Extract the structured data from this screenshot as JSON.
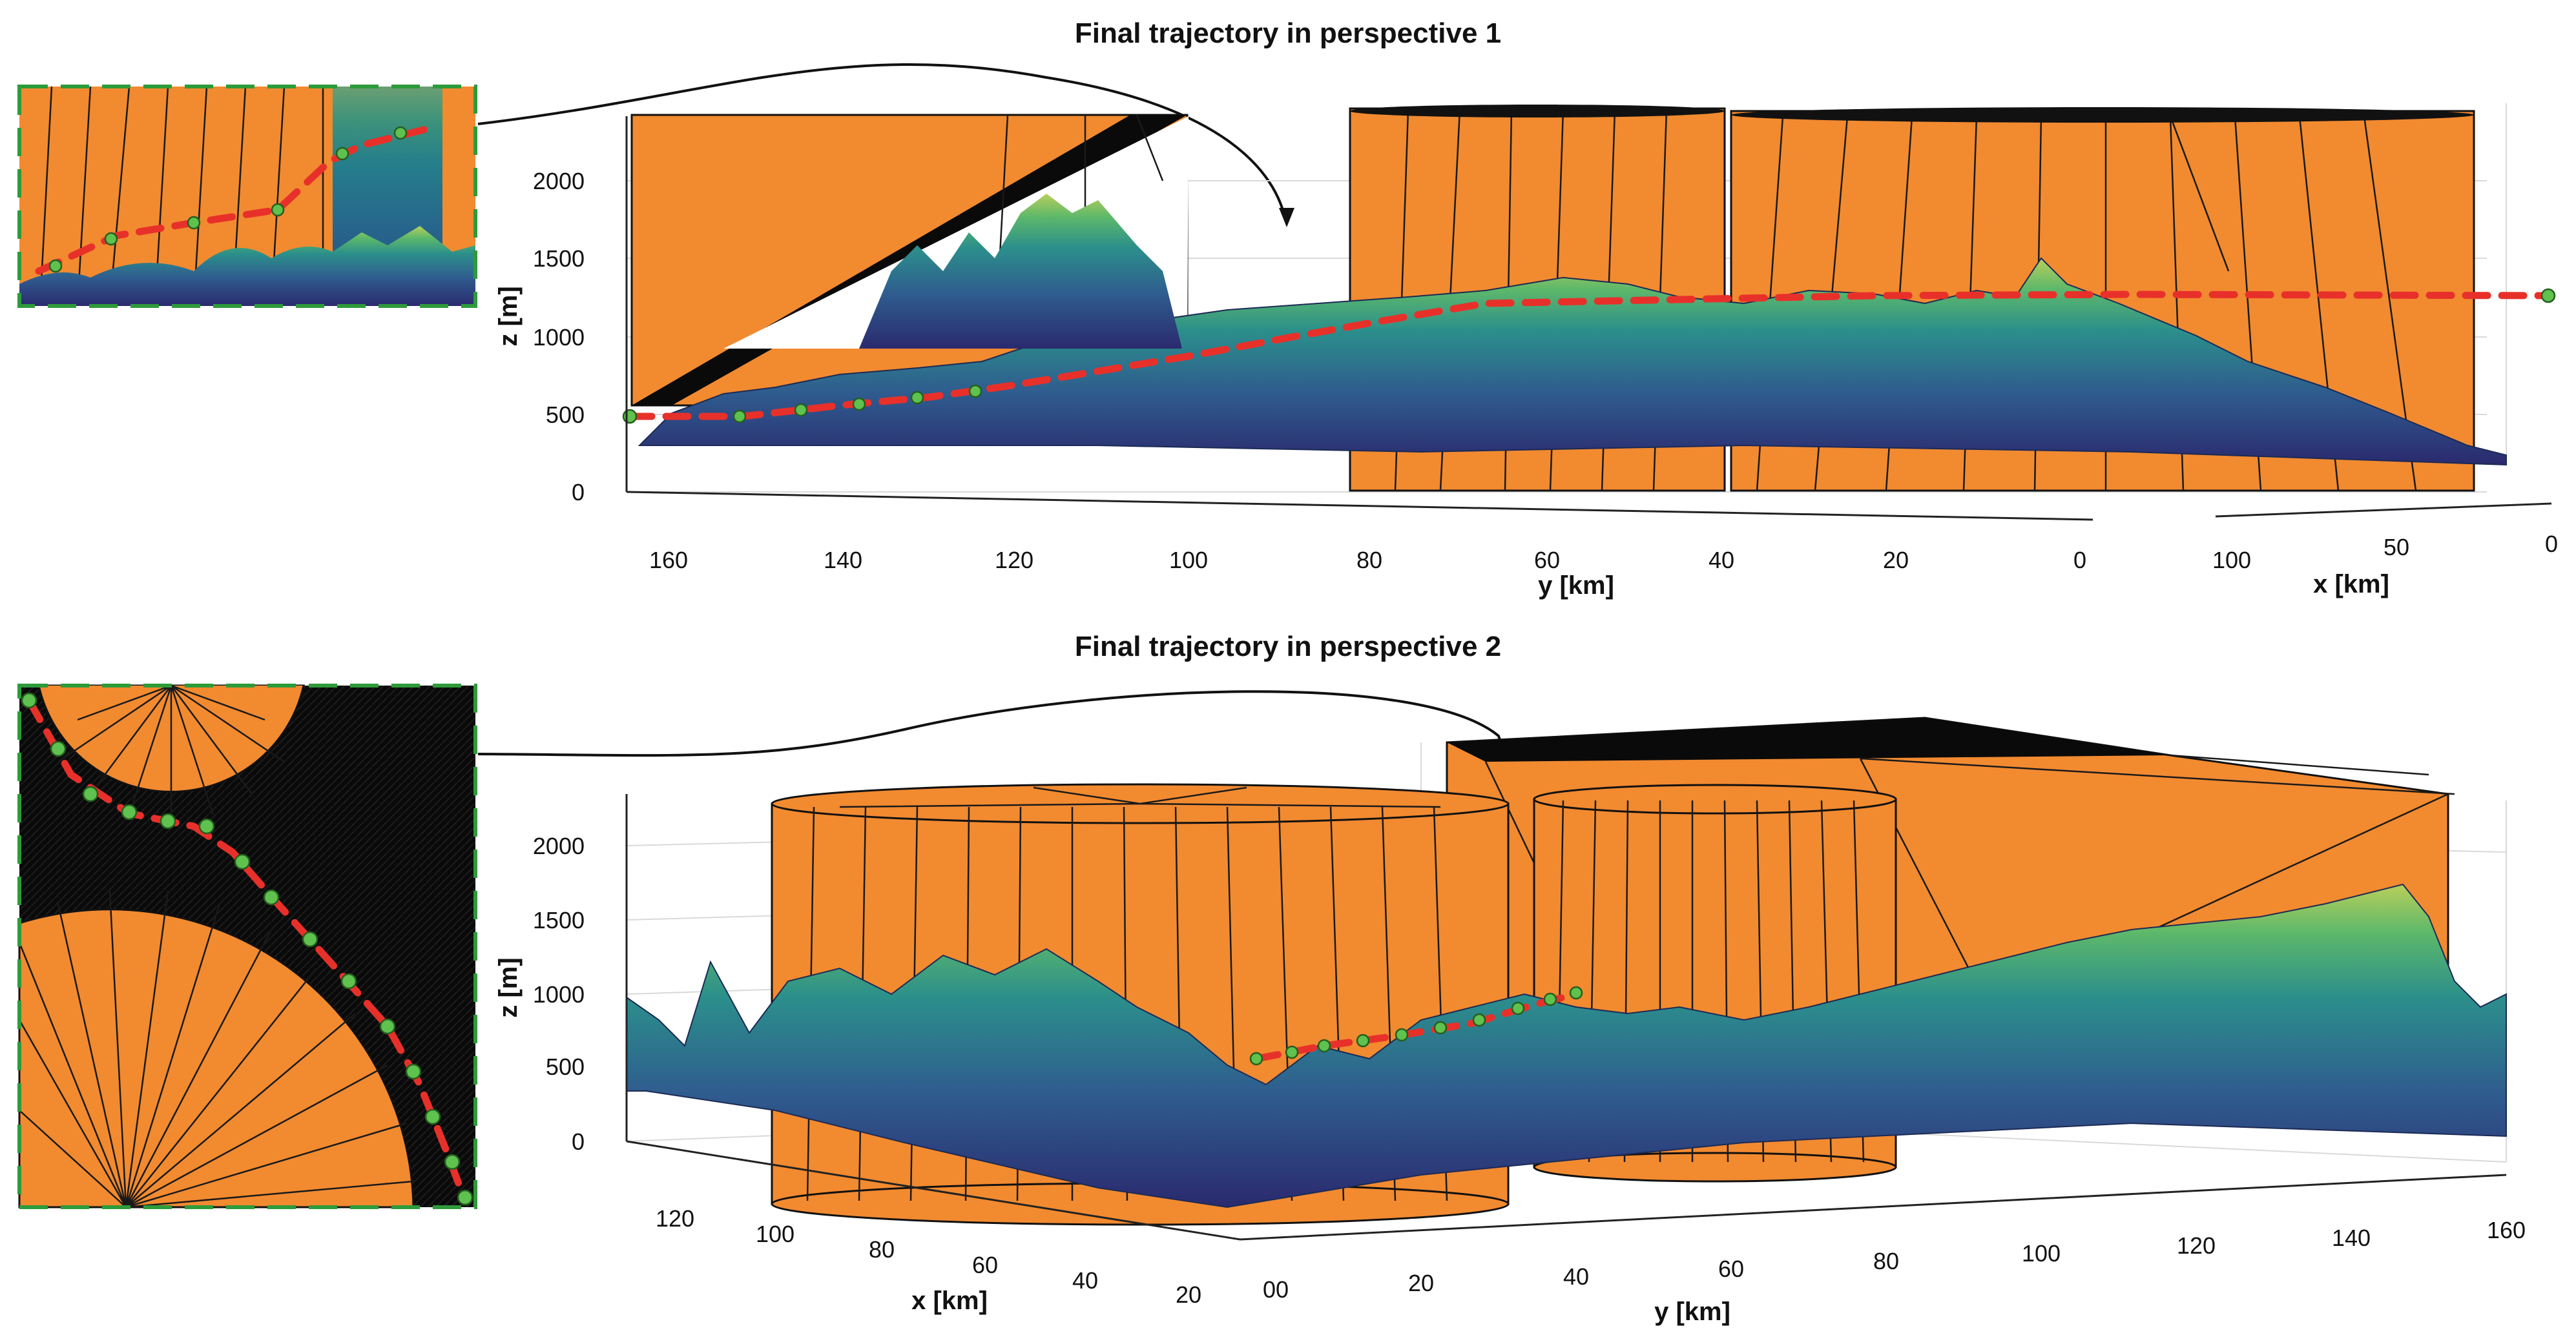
{
  "chart_data": [
    {
      "type": "surface3d",
      "title": "Final trajectory in perspective 1",
      "zlabel": "z [m]",
      "ylabel": "y [km]",
      "xlabel": "x [km]",
      "zlim": [
        0,
        2300
      ],
      "z_ticks": [
        "0",
        "500",
        "1000",
        "1500",
        "2000"
      ],
      "y_ticks": [
        "160",
        "140",
        "120",
        "100",
        "80",
        "60",
        "40",
        "20",
        "0"
      ],
      "x_ticks": [
        "100",
        "50",
        "0"
      ],
      "trajectory_altitude_m": [
        500,
        1250
      ],
      "colors": {
        "obstacle": "#f28a30",
        "trajectory": "#e8302a",
        "waypoint": "#5fc14e",
        "inset_frame": "#2e9b3a"
      }
    },
    {
      "type": "surface3d",
      "title": "Final trajectory in perspective 2",
      "zlabel": "z [m]",
      "xlabel": "x [km]",
      "ylabel": "y [km]",
      "zlim": [
        0,
        2300
      ],
      "z_ticks": [
        "0",
        "500",
        "1000",
        "1500",
        "2000"
      ],
      "x_ticks": [
        "120",
        "100",
        "80",
        "60",
        "40",
        "20"
      ],
      "y_ticks": [
        "00",
        "20",
        "40",
        "60",
        "80",
        "100",
        "120",
        "140",
        "160"
      ],
      "trajectory_altitude_m": [
        550,
        1000
      ],
      "colors": {
        "obstacle": "#f28a30",
        "trajectory": "#e8302a",
        "waypoint": "#5fc14e",
        "inset_frame": "#2e9b3a"
      }
    }
  ]
}
